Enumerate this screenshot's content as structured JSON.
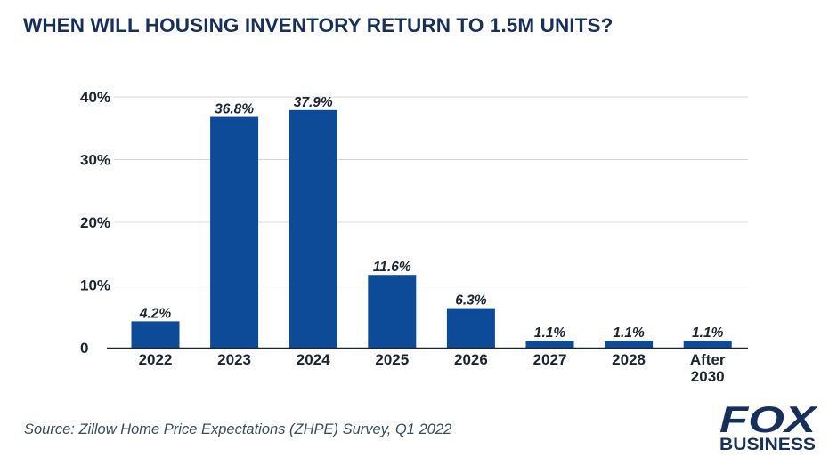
{
  "title": "WHEN WILL HOUSING INVENTORY RETURN TO 1.5M UNITS?",
  "source": "Source:  Zillow Home Price Expectations (ZHPE) Survey, Q1 2022",
  "logo": {
    "line1": "FOX",
    "line2": "BUSINESS"
  },
  "colors": {
    "bar": "#0d4a97",
    "title": "#17305a",
    "grid": "#d9d9d9",
    "axis": "#1b2430",
    "logo": "#16305b"
  },
  "chart_data": {
    "type": "bar",
    "title": "WHEN WILL HOUSING INVENTORY RETURN TO 1.5M UNITS?",
    "xlabel": "",
    "ylabel": "",
    "categories": [
      "2022",
      "2023",
      "2024",
      "2025",
      "2026",
      "2027",
      "2028",
      "After 2030"
    ],
    "values": [
      4.2,
      36.8,
      37.9,
      11.6,
      6.3,
      1.1,
      1.1,
      1.1
    ],
    "value_labels": [
      "4.2%",
      "36.8%",
      "37.9%",
      "11.6%",
      "6.3%",
      "1.1%",
      "1.1%",
      "1.1%"
    ],
    "ylim": [
      0,
      40
    ],
    "yticks": [
      0,
      10,
      20,
      30,
      40
    ],
    "ytick_labels": [
      "0",
      "10%",
      "20%",
      "30%",
      "40%"
    ],
    "grid": true,
    "legend": "none"
  }
}
